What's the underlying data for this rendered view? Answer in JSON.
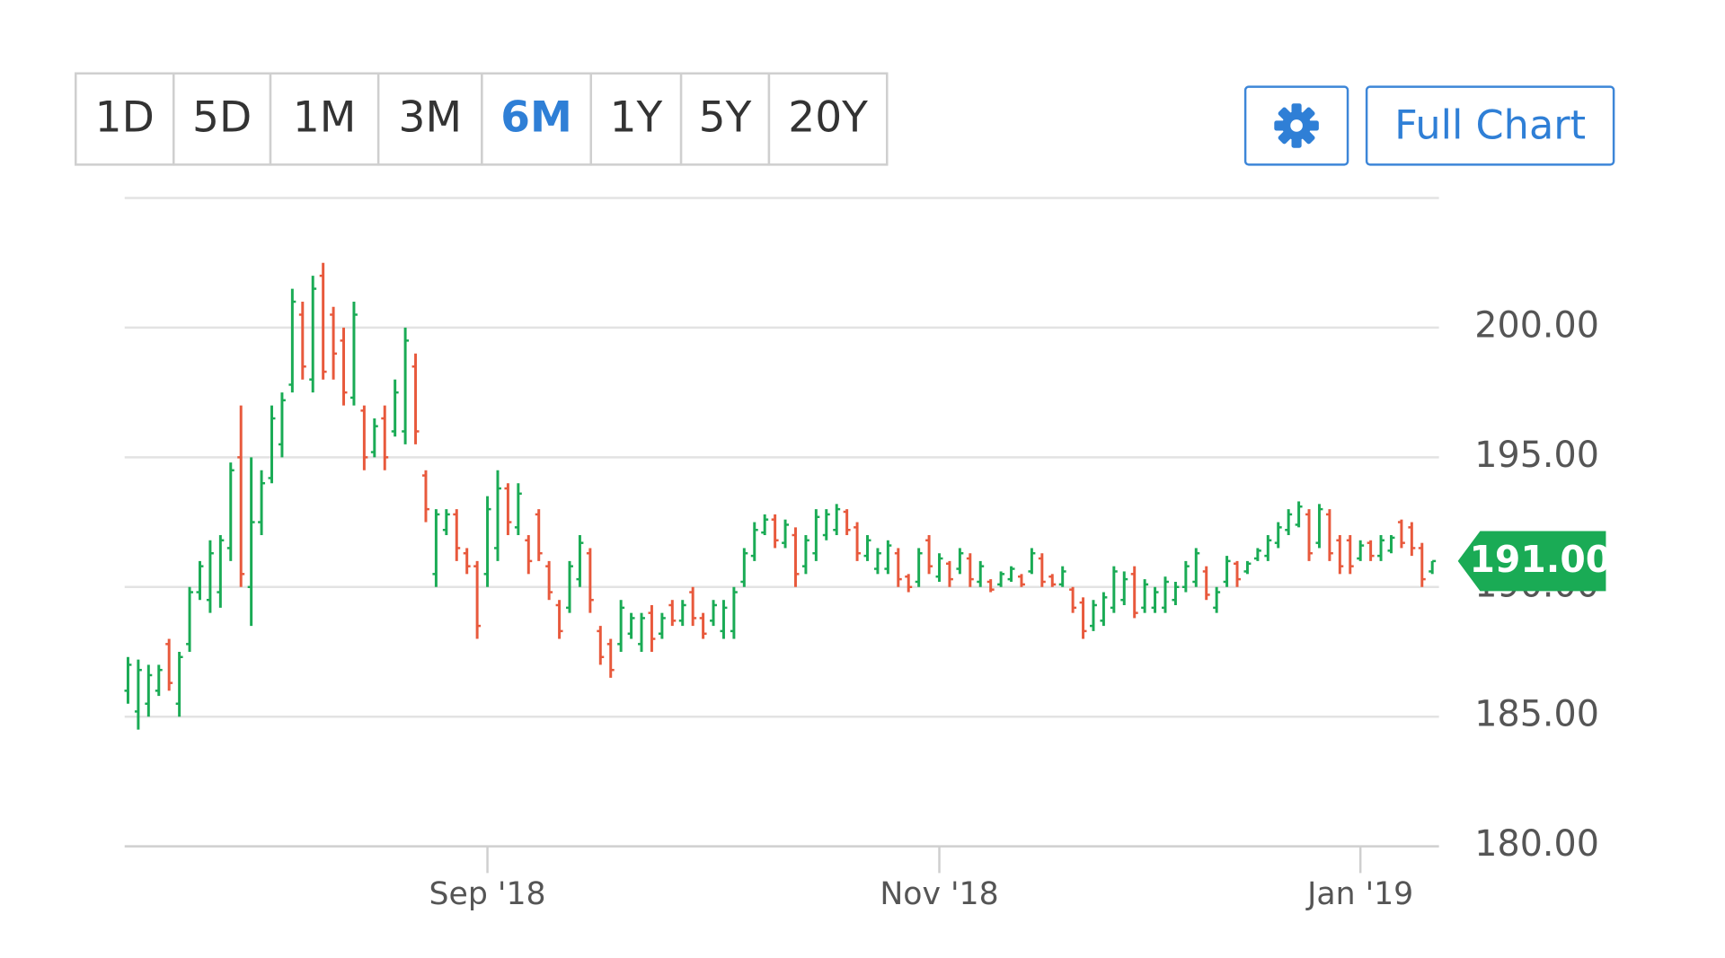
{
  "range_buttons": {
    "items": [
      "1D",
      "5D",
      "1M",
      "3M",
      "6M",
      "1Y",
      "5Y",
      "20Y"
    ],
    "active": "6M"
  },
  "full_chart": "Full Chart",
  "chart_data": {
    "type": "ohlc",
    "categories": [
      null,
      null,
      null,
      null,
      null,
      null,
      null,
      null,
      null,
      null,
      null,
      null,
      null,
      null,
      null,
      null,
      null,
      null,
      null,
      null,
      null,
      null,
      null,
      null,
      null,
      null,
      null,
      null,
      null,
      null,
      null,
      null,
      null,
      null,
      null,
      "Sep '18",
      null,
      null,
      null,
      null,
      null,
      null,
      null,
      null,
      null,
      null,
      null,
      null,
      null,
      null,
      null,
      null,
      null,
      null,
      null,
      null,
      null,
      null,
      null,
      null,
      null,
      null,
      null,
      null,
      null,
      null,
      null,
      null,
      null,
      null,
      null,
      null,
      null,
      null,
      null,
      null,
      null,
      null,
      null,
      "Nov '18",
      null,
      null,
      null,
      null,
      null,
      null,
      null,
      null,
      null,
      null,
      null,
      null,
      null,
      null,
      null,
      null,
      null,
      null,
      null,
      null,
      null,
      null,
      null,
      null,
      null,
      null,
      null,
      null,
      null,
      null,
      null,
      null,
      null,
      null,
      null,
      null,
      null,
      null,
      null,
      null,
      "Jan '19",
      null,
      null,
      null,
      null,
      null,
      null,
      null
    ],
    "open": [
      186.0,
      185.2,
      185.5,
      186.0,
      187.8,
      185.5,
      187.8,
      189.8,
      189.5,
      189.8,
      191.5,
      195.0,
      190.0,
      192.5,
      194.2,
      195.5,
      197.8,
      200.5,
      198.0,
      202.0,
      200.5,
      199.5,
      197.3,
      196.8,
      195.2,
      196.5,
      196.0,
      196.0,
      198.5,
      194.3,
      190.5,
      192.2,
      192.8,
      191.3,
      190.8,
      190.5,
      191.5,
      193.8,
      192.3,
      191.8,
      192.8,
      190.8,
      189.3,
      189.2,
      190.3,
      191.3,
      188.3,
      187.8,
      187.8,
      188.2,
      187.8,
      189.0,
      188.2,
      189.3,
      188.7,
      189.8,
      188.8,
      188.7,
      188.3,
      188.3,
      190.2,
      191.2,
      192.1,
      192.6,
      191.7,
      192.0,
      190.8,
      191.3,
      192.0,
      192.2,
      192.9,
      192.3,
      191.2,
      190.7,
      190.7,
      191.3,
      190.4,
      190.2,
      191.8,
      190.4,
      190.9,
      190.7,
      191.1,
      190.2,
      190.2,
      190.1,
      190.3,
      190.4,
      190.6,
      191.1,
      190.4,
      190.1,
      189.9,
      189.4,
      188.5,
      188.7,
      189.2,
      189.5,
      190.5,
      189.2,
      189.2,
      189.2,
      189.5,
      190.0,
      190.2,
      190.6,
      189.2,
      190.2,
      190.9,
      190.6,
      191.1,
      191.2,
      191.7,
      192.2,
      192.4,
      192.8,
      191.7,
      192.8,
      191.8,
      191.8,
      191.1,
      191.7,
      191.2,
      191.4,
      192.5,
      192.3,
      191.5,
      190.6
    ],
    "high": [
      187.3,
      187.2,
      187.0,
      187.0,
      188.0,
      187.5,
      190.0,
      191.0,
      191.8,
      192.0,
      194.8,
      197.0,
      195.0,
      194.5,
      197.0,
      197.5,
      201.5,
      201.0,
      202.0,
      202.5,
      200.8,
      200.0,
      201.0,
      197.0,
      196.5,
      197.0,
      198.0,
      200.0,
      199.0,
      194.5,
      193.0,
      193.0,
      193.0,
      191.5,
      191.0,
      193.5,
      194.5,
      194.0,
      194.0,
      192.0,
      193.0,
      191.0,
      189.5,
      191.0,
      192.0,
      191.5,
      188.5,
      188.0,
      189.5,
      189.0,
      189.0,
      189.3,
      189.0,
      189.5,
      189.5,
      190.0,
      189.0,
      189.5,
      189.5,
      190.0,
      191.5,
      192.5,
      192.8,
      192.8,
      192.6,
      192.3,
      192.0,
      193.0,
      193.0,
      193.2,
      193.0,
      192.5,
      192.0,
      191.5,
      191.8,
      191.5,
      190.5,
      191.5,
      192.0,
      191.3,
      191.0,
      191.5,
      191.3,
      191.0,
      190.3,
      190.6,
      190.8,
      190.5,
      191.5,
      191.3,
      190.5,
      190.8,
      190.0,
      189.6,
      189.5,
      189.8,
      190.8,
      190.6,
      190.8,
      190.3,
      190.0,
      190.4,
      190.2,
      191.0,
      191.5,
      190.8,
      190.0,
      191.2,
      191.0,
      191.0,
      191.5,
      192.0,
      192.5,
      193.0,
      193.3,
      193.0,
      193.2,
      193.0,
      192.0,
      192.0,
      191.8,
      191.8,
      192.0,
      192.0,
      192.6,
      192.5,
      191.7,
      191.0
    ],
    "low": [
      185.5,
      184.5,
      185.0,
      185.8,
      186.0,
      185.0,
      187.5,
      189.5,
      189.0,
      189.2,
      191.0,
      190.0,
      188.5,
      192.0,
      194.0,
      195.0,
      197.5,
      198.0,
      197.5,
      198.0,
      198.0,
      197.0,
      197.0,
      194.5,
      195.0,
      194.5,
      195.8,
      195.5,
      195.5,
      192.5,
      190.0,
      192.0,
      191.0,
      190.5,
      188.0,
      190.0,
      191.0,
      192.0,
      192.0,
      190.5,
      191.0,
      189.5,
      188.0,
      189.0,
      190.0,
      189.0,
      187.0,
      186.5,
      187.5,
      188.0,
      187.5,
      187.5,
      188.0,
      188.5,
      188.5,
      188.5,
      188.0,
      188.5,
      188.0,
      188.0,
      190.0,
      191.0,
      192.0,
      191.5,
      191.5,
      190.0,
      190.5,
      191.0,
      191.8,
      192.0,
      192.0,
      191.0,
      191.0,
      190.5,
      190.5,
      190.0,
      189.8,
      190.0,
      190.5,
      190.2,
      190.0,
      190.5,
      190.0,
      190.0,
      189.8,
      190.0,
      190.2,
      190.0,
      190.5,
      190.0,
      190.0,
      190.0,
      189.0,
      188.0,
      188.3,
      188.5,
      189.0,
      189.3,
      188.8,
      189.0,
      189.0,
      189.0,
      189.3,
      189.8,
      190.0,
      189.5,
      189.0,
      190.0,
      190.0,
      190.5,
      191.0,
      191.0,
      191.5,
      192.0,
      192.3,
      191.0,
      191.5,
      191.0,
      190.5,
      190.5,
      191.0,
      191.0,
      191.0,
      191.3,
      191.5,
      191.2,
      190.0,
      190.5
    ],
    "close": [
      187.0,
      186.8,
      186.6,
      186.8,
      186.3,
      187.3,
      189.8,
      190.8,
      191.3,
      191.8,
      194.5,
      190.5,
      192.5,
      194.0,
      196.5,
      197.2,
      201.0,
      198.5,
      201.5,
      198.3,
      199.0,
      197.5,
      200.5,
      195.0,
      196.2,
      195.0,
      197.5,
      199.5,
      196.0,
      193.0,
      192.8,
      192.8,
      191.5,
      190.8,
      188.5,
      193.0,
      193.8,
      192.5,
      193.6,
      191.0,
      191.3,
      189.8,
      188.3,
      190.8,
      191.7,
      189.5,
      187.3,
      186.8,
      189.2,
      188.8,
      188.8,
      188.0,
      188.8,
      188.7,
      189.3,
      188.8,
      188.2,
      189.3,
      189.2,
      189.8,
      191.3,
      192.2,
      192.6,
      191.8,
      192.4,
      190.5,
      191.8,
      192.7,
      192.8,
      193.0,
      192.2,
      191.3,
      191.8,
      191.3,
      191.6,
      190.3,
      190.0,
      191.3,
      190.8,
      191.1,
      190.3,
      191.3,
      190.3,
      190.8,
      189.9,
      190.5,
      190.7,
      190.1,
      191.3,
      190.2,
      190.1,
      190.6,
      189.2,
      188.3,
      189.3,
      189.6,
      190.6,
      190.3,
      189.0,
      190.1,
      189.8,
      190.2,
      190.0,
      190.8,
      191.3,
      189.7,
      189.8,
      191.0,
      190.3,
      190.9,
      191.4,
      191.8,
      192.3,
      192.8,
      193.1,
      191.3,
      193.0,
      191.3,
      190.8,
      190.8,
      191.6,
      191.2,
      191.8,
      191.9,
      191.7,
      191.5,
      190.3,
      191.0
    ],
    "up_color": "#1aab55",
    "down_color": "#e8593c",
    "ylim": [
      180,
      205
    ],
    "yticks": [
      {
        "value": 180,
        "label": "180.00"
      },
      {
        "value": 185,
        "label": "185.00"
      },
      {
        "value": 190,
        "label": "190.00"
      },
      {
        "value": 195,
        "label": "195.00"
      },
      {
        "value": 200,
        "label": "200.00"
      }
    ],
    "grid": true,
    "last_price": {
      "value": 191,
      "label": "191.00"
    }
  }
}
